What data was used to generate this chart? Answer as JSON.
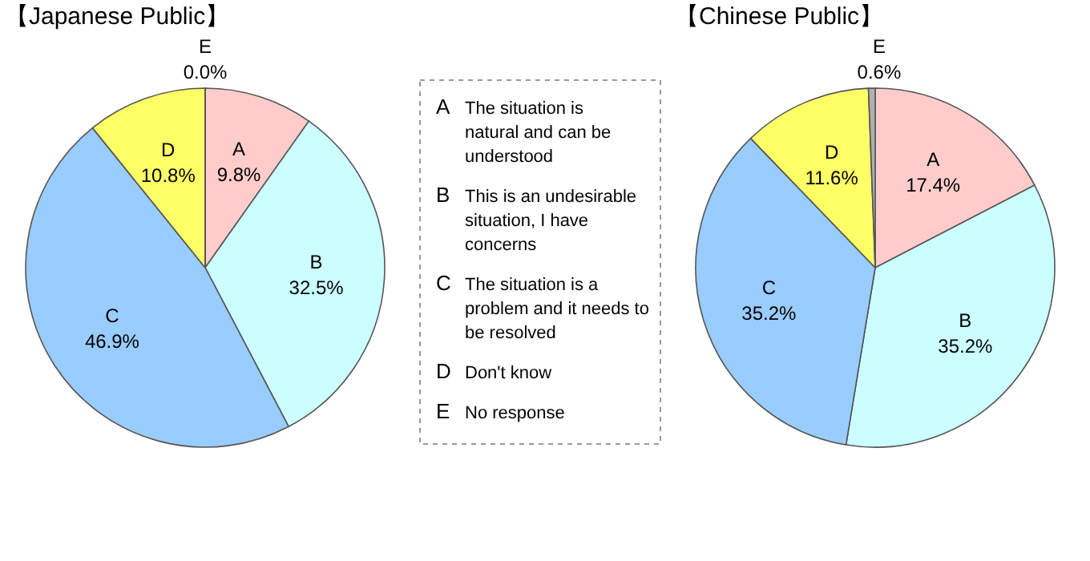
{
  "chart_data": [
    {
      "type": "pie",
      "title": "【Japanese Public】",
      "categories": [
        "A",
        "B",
        "C",
        "D",
        "E"
      ],
      "values": [
        9.8,
        32.5,
        46.9,
        10.8,
        0.0
      ],
      "colors": [
        "#ffcccc",
        "#ccffff",
        "#99ccff",
        "#ffff66",
        "#b0b0b0"
      ],
      "value_labels": [
        "9.8%",
        "32.5%",
        "46.9%",
        "10.8%",
        "0.0%"
      ],
      "legend": false
    },
    {
      "type": "other",
      "annotations": [
        "A The situation is natural and can be understood",
        "B This is an undesirable situation, I have concerns",
        "C The situation is a problem and it needs to be resolved",
        "D Don't know",
        "E No response"
      ]
    },
    {
      "type": "pie",
      "title": "【Chinese Public】",
      "categories": [
        "A",
        "B",
        "C",
        "D",
        "E"
      ],
      "values": [
        17.4,
        35.2,
        35.2,
        11.6,
        0.6
      ],
      "colors": [
        "#ffcccc",
        "#ccffff",
        "#99ccff",
        "#ffff66",
        "#b0b0b0"
      ],
      "value_labels": [
        "17.4%",
        "35.2%",
        "35.2%",
        "11.6%",
        "0.6%"
      ],
      "legend": false
    }
  ]
}
